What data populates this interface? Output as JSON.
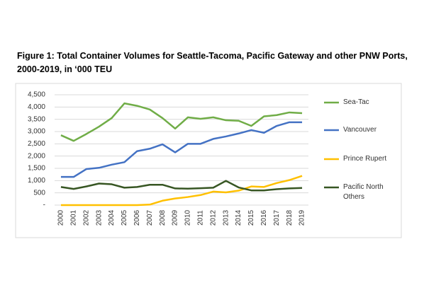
{
  "chart_data": {
    "type": "line",
    "title": "Figure 1: Total Container Volumes for Seattle-Tacoma, Pacific Gateway and other PNW Ports, 2000-2019, in ‘000 TEU",
    "categories": [
      "2000",
      "2001",
      "2002",
      "2003",
      "2004",
      "2005",
      "2006",
      "2007",
      "2008",
      "2009",
      "2010",
      "2011",
      "2012",
      "2013",
      "2014",
      "2015",
      "2016",
      "2017",
      "2018",
      "2019"
    ],
    "series": [
      {
        "name": "Sea-Tac",
        "color": "#70ad47",
        "values": [
          2850,
          2620,
          2900,
          3200,
          3550,
          4150,
          4050,
          3900,
          3550,
          3120,
          3580,
          3520,
          3580,
          3460,
          3440,
          3230,
          3620,
          3670,
          3780,
          3750
        ]
      },
      {
        "name": "Vancouver",
        "color": "#4472c4",
        "values": [
          1150,
          1150,
          1470,
          1520,
          1650,
          1750,
          2200,
          2300,
          2480,
          2150,
          2500,
          2500,
          2700,
          2800,
          2920,
          3060,
          2950,
          3230,
          3380,
          3380
        ]
      },
      {
        "name": "Prince Rupert",
        "color": "#ffc000",
        "values": [
          0,
          0,
          0,
          0,
          0,
          0,
          0,
          20,
          180,
          270,
          330,
          410,
          550,
          520,
          590,
          760,
          740,
          900,
          1020,
          1190
        ]
      },
      {
        "name": "Pacific North Others",
        "color": "#375623",
        "values": [
          740,
          660,
          760,
          880,
          850,
          710,
          740,
          830,
          830,
          680,
          670,
          690,
          710,
          990,
          720,
          600,
          600,
          650,
          680,
          700
        ]
      }
    ],
    "ylim": [
      0,
      4500
    ],
    "yticks": [
      {
        "value": 0,
        "label": "-"
      },
      {
        "value": 500,
        "label": "500"
      },
      {
        "value": 1000,
        "label": "1,000"
      },
      {
        "value": 1500,
        "label": "1,500"
      },
      {
        "value": 2000,
        "label": "2,000"
      },
      {
        "value": 2500,
        "label": "2,500"
      },
      {
        "value": 3000,
        "label": "3,000"
      },
      {
        "value": 3500,
        "label": "3,500"
      },
      {
        "value": 4000,
        "label": "4,000"
      },
      {
        "value": 4500,
        "label": "4,500"
      }
    ],
    "grid": true
  }
}
